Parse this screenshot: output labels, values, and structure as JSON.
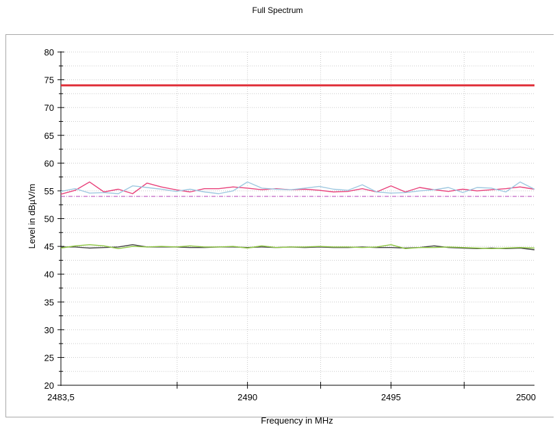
{
  "chart_data": {
    "type": "line",
    "title": "Full Spectrum",
    "xlabel": "Frequency in MHz",
    "ylabel": "Level in dBµV/m",
    "xlim": [
      2483.5,
      2500
    ],
    "ylim": [
      20,
      80
    ],
    "grid": true,
    "x_ticks": [
      {
        "value": 2483.5,
        "label": "2483,5"
      },
      {
        "value": 2490,
        "label": "2490"
      },
      {
        "value": 2495,
        "label": "2495"
      },
      {
        "value": 2500,
        "label": "2500"
      }
    ],
    "x_grid_values": [
      2487.55,
      2490,
      2492.55,
      2495,
      2497.55
    ],
    "y_ticks": [
      20,
      25,
      30,
      35,
      40,
      45,
      50,
      55,
      60,
      65,
      70,
      75,
      80
    ],
    "series": [
      {
        "role": "limit-peak",
        "color": "#e0303a",
        "style": "solid",
        "x": [
          2483.5,
          2500
        ],
        "y": [
          74,
          74
        ]
      },
      {
        "role": "limit-average",
        "color": "#b33cb5",
        "style": "dashdot",
        "x": [
          2483.5,
          2500
        ],
        "y": [
          54,
          54
        ]
      },
      {
        "role": "peak-trace-1",
        "color": "#e8407a",
        "style": "solid",
        "x": [
          2483.5,
          2484.0,
          2484.5,
          2485.0,
          2485.5,
          2486.0,
          2486.5,
          2487.0,
          2487.5,
          2488.0,
          2488.5,
          2489.0,
          2489.5,
          2490.0,
          2490.5,
          2491.0,
          2491.5,
          2492.0,
          2492.5,
          2493.0,
          2493.5,
          2494.0,
          2494.5,
          2495.0,
          2495.5,
          2496.0,
          2496.5,
          2497.0,
          2497.5,
          2498.0,
          2498.5,
          2499.0,
          2499.5,
          2500.0
        ],
        "y": [
          54.4,
          55.1,
          56.6,
          54.8,
          55.3,
          54.5,
          56.4,
          55.7,
          55.2,
          54.8,
          55.4,
          55.4,
          55.7,
          55.5,
          55.2,
          55.4,
          55.2,
          55.3,
          55.1,
          54.8,
          54.9,
          55.4,
          54.8,
          55.9,
          54.8,
          55.6,
          55.2,
          54.9,
          55.3,
          55.0,
          55.2,
          55.4,
          55.7,
          55.3
        ]
      },
      {
        "role": "peak-trace-2",
        "color": "#9ec8e0",
        "style": "solid",
        "x": [
          2483.5,
          2484.0,
          2484.5,
          2485.0,
          2485.5,
          2486.0,
          2486.5,
          2487.0,
          2487.5,
          2488.0,
          2488.5,
          2489.0,
          2489.5,
          2490.0,
          2490.5,
          2491.0,
          2491.5,
          2492.0,
          2492.5,
          2493.0,
          2493.5,
          2494.0,
          2494.5,
          2495.0,
          2495.5,
          2496.0,
          2496.5,
          2497.0,
          2497.5,
          2498.0,
          2498.5,
          2499.0,
          2499.5,
          2500.0
        ],
        "y": [
          54.9,
          55.4,
          54.6,
          54.7,
          54.5,
          55.9,
          55.6,
          55.3,
          54.9,
          55.3,
          54.8,
          54.5,
          55.0,
          56.6,
          55.5,
          55.3,
          55.2,
          55.5,
          55.8,
          55.3,
          55.1,
          56.1,
          54.8,
          54.6,
          54.7,
          55.0,
          55.2,
          55.6,
          54.7,
          55.6,
          55.5,
          54.8,
          56.6,
          55.3
        ]
      },
      {
        "role": "average-trace-1",
        "color": "#404040",
        "style": "solid",
        "x": [
          2483.5,
          2484.0,
          2484.5,
          2485.0,
          2485.5,
          2486.0,
          2486.5,
          2487.0,
          2487.5,
          2488.0,
          2488.5,
          2489.0,
          2489.5,
          2490.0,
          2490.5,
          2491.0,
          2491.5,
          2492.0,
          2492.5,
          2493.0,
          2493.5,
          2494.0,
          2494.5,
          2495.0,
          2495.5,
          2496.0,
          2496.5,
          2497.0,
          2497.5,
          2498.0,
          2498.5,
          2499.0,
          2499.5,
          2500.0
        ],
        "y": [
          44.9,
          44.9,
          44.7,
          44.8,
          44.9,
          45.3,
          44.9,
          44.9,
          44.9,
          44.8,
          44.8,
          44.9,
          44.9,
          44.8,
          44.9,
          44.8,
          44.9,
          44.8,
          44.9,
          44.8,
          44.8,
          44.9,
          44.8,
          44.8,
          44.7,
          44.8,
          45.1,
          44.8,
          44.7,
          44.6,
          44.7,
          44.6,
          44.7,
          44.4
        ]
      },
      {
        "role": "average-trace-2",
        "color": "#8cc63f",
        "style": "solid",
        "x": [
          2483.5,
          2484.0,
          2484.5,
          2485.0,
          2485.5,
          2486.0,
          2486.5,
          2487.0,
          2487.5,
          2488.0,
          2488.5,
          2489.0,
          2489.5,
          2490.0,
          2490.5,
          2491.0,
          2491.5,
          2492.0,
          2492.5,
          2493.0,
          2493.5,
          2494.0,
          2494.5,
          2495.0,
          2495.5,
          2496.0,
          2496.5,
          2497.0,
          2497.5,
          2498.0,
          2498.5,
          2499.0,
          2499.5,
          2500.0
        ],
        "y": [
          44.7,
          45.1,
          45.3,
          45.1,
          44.6,
          45.0,
          44.9,
          45.0,
          44.9,
          45.1,
          44.9,
          44.9,
          45.0,
          44.7,
          45.1,
          44.8,
          44.9,
          44.9,
          45.0,
          44.9,
          44.9,
          44.8,
          44.9,
          45.3,
          44.6,
          44.8,
          44.8,
          44.9,
          44.8,
          44.7,
          44.6,
          44.7,
          44.8,
          44.7
        ]
      }
    ]
  }
}
